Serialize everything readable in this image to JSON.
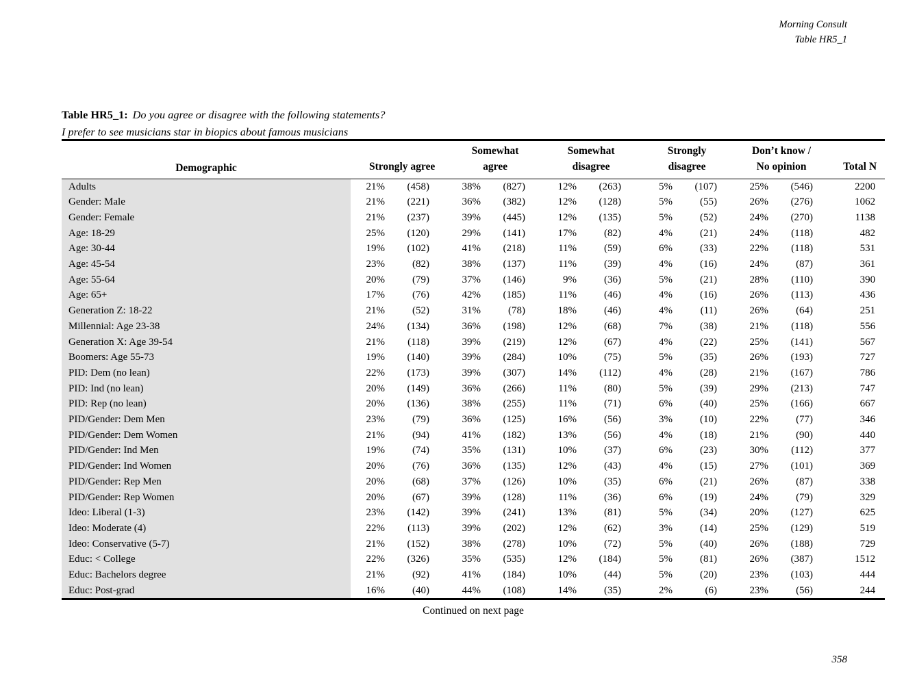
{
  "page_header": {
    "source": "Morning Consult",
    "table_ref": "Table HR5_1"
  },
  "title": {
    "prefix": "Table HR5_1:",
    "question": "Do you agree or disagree with the following statements?",
    "statement": "I prefer to see musicians star in biopics about famous musicians"
  },
  "table": {
    "demographic_header": "Demographic",
    "col_groups": [
      {
        "line1": "",
        "line2": "Strongly agree"
      },
      {
        "line1": "Somewhat",
        "line2": "agree"
      },
      {
        "line1": "Somewhat",
        "line2": "disagree"
      },
      {
        "line1": "Strongly",
        "line2": "disagree"
      },
      {
        "line1": "Don’t know /",
        "line2": "No opinion"
      },
      {
        "line1": "",
        "line2": "Total N"
      }
    ],
    "rows": [
      {
        "label": "Adults",
        "cells": [
          "21%",
          "(458)",
          "38%",
          "(827)",
          "12%",
          "(263)",
          "5%",
          "(107)",
          "25%",
          "(546)",
          "2200"
        ]
      },
      {
        "label": "Gender: Male",
        "cells": [
          "21%",
          "(221)",
          "36%",
          "(382)",
          "12%",
          "(128)",
          "5%",
          "(55)",
          "26%",
          "(276)",
          "1062"
        ]
      },
      {
        "label": "Gender: Female",
        "cells": [
          "21%",
          "(237)",
          "39%",
          "(445)",
          "12%",
          "(135)",
          "5%",
          "(52)",
          "24%",
          "(270)",
          "1138"
        ]
      },
      {
        "label": "Age: 18-29",
        "cells": [
          "25%",
          "(120)",
          "29%",
          "(141)",
          "17%",
          "(82)",
          "4%",
          "(21)",
          "24%",
          "(118)",
          "482"
        ]
      },
      {
        "label": "Age: 30-44",
        "cells": [
          "19%",
          "(102)",
          "41%",
          "(218)",
          "11%",
          "(59)",
          "6%",
          "(33)",
          "22%",
          "(118)",
          "531"
        ]
      },
      {
        "label": "Age: 45-54",
        "cells": [
          "23%",
          "(82)",
          "38%",
          "(137)",
          "11%",
          "(39)",
          "4%",
          "(16)",
          "24%",
          "(87)",
          "361"
        ]
      },
      {
        "label": "Age: 55-64",
        "cells": [
          "20%",
          "(79)",
          "37%",
          "(146)",
          "9%",
          "(36)",
          "5%",
          "(21)",
          "28%",
          "(110)",
          "390"
        ]
      },
      {
        "label": "Age: 65+",
        "cells": [
          "17%",
          "(76)",
          "42%",
          "(185)",
          "11%",
          "(46)",
          "4%",
          "(16)",
          "26%",
          "(113)",
          "436"
        ]
      },
      {
        "label": "Generation Z: 18-22",
        "cells": [
          "21%",
          "(52)",
          "31%",
          "(78)",
          "18%",
          "(46)",
          "4%",
          "(11)",
          "26%",
          "(64)",
          "251"
        ]
      },
      {
        "label": "Millennial: Age 23-38",
        "cells": [
          "24%",
          "(134)",
          "36%",
          "(198)",
          "12%",
          "(68)",
          "7%",
          "(38)",
          "21%",
          "(118)",
          "556"
        ]
      },
      {
        "label": "Generation X: Age 39-54",
        "cells": [
          "21%",
          "(118)",
          "39%",
          "(219)",
          "12%",
          "(67)",
          "4%",
          "(22)",
          "25%",
          "(141)",
          "567"
        ]
      },
      {
        "label": "Boomers: Age 55-73",
        "cells": [
          "19%",
          "(140)",
          "39%",
          "(284)",
          "10%",
          "(75)",
          "5%",
          "(35)",
          "26%",
          "(193)",
          "727"
        ]
      },
      {
        "label": "PID: Dem (no lean)",
        "cells": [
          "22%",
          "(173)",
          "39%",
          "(307)",
          "14%",
          "(112)",
          "4%",
          "(28)",
          "21%",
          "(167)",
          "786"
        ]
      },
      {
        "label": "PID: Ind (no lean)",
        "cells": [
          "20%",
          "(149)",
          "36%",
          "(266)",
          "11%",
          "(80)",
          "5%",
          "(39)",
          "29%",
          "(213)",
          "747"
        ]
      },
      {
        "label": "PID: Rep (no lean)",
        "cells": [
          "20%",
          "(136)",
          "38%",
          "(255)",
          "11%",
          "(71)",
          "6%",
          "(40)",
          "25%",
          "(166)",
          "667"
        ]
      },
      {
        "label": "PID/Gender: Dem Men",
        "cells": [
          "23%",
          "(79)",
          "36%",
          "(125)",
          "16%",
          "(56)",
          "3%",
          "(10)",
          "22%",
          "(77)",
          "346"
        ]
      },
      {
        "label": "PID/Gender: Dem Women",
        "cells": [
          "21%",
          "(94)",
          "41%",
          "(182)",
          "13%",
          "(56)",
          "4%",
          "(18)",
          "21%",
          "(90)",
          "440"
        ]
      },
      {
        "label": "PID/Gender: Ind Men",
        "cells": [
          "19%",
          "(74)",
          "35%",
          "(131)",
          "10%",
          "(37)",
          "6%",
          "(23)",
          "30%",
          "(112)",
          "377"
        ]
      },
      {
        "label": "PID/Gender: Ind Women",
        "cells": [
          "20%",
          "(76)",
          "36%",
          "(135)",
          "12%",
          "(43)",
          "4%",
          "(15)",
          "27%",
          "(101)",
          "369"
        ]
      },
      {
        "label": "PID/Gender: Rep Men",
        "cells": [
          "20%",
          "(68)",
          "37%",
          "(126)",
          "10%",
          "(35)",
          "6%",
          "(21)",
          "26%",
          "(87)",
          "338"
        ]
      },
      {
        "label": "PID/Gender: Rep Women",
        "cells": [
          "20%",
          "(67)",
          "39%",
          "(128)",
          "11%",
          "(36)",
          "6%",
          "(19)",
          "24%",
          "(79)",
          "329"
        ]
      },
      {
        "label": "Ideo: Liberal (1-3)",
        "cells": [
          "23%",
          "(142)",
          "39%",
          "(241)",
          "13%",
          "(81)",
          "5%",
          "(34)",
          "20%",
          "(127)",
          "625"
        ]
      },
      {
        "label": "Ideo: Moderate (4)",
        "cells": [
          "22%",
          "(113)",
          "39%",
          "(202)",
          "12%",
          "(62)",
          "3%",
          "(14)",
          "25%",
          "(129)",
          "519"
        ]
      },
      {
        "label": "Ideo: Conservative (5-7)",
        "cells": [
          "21%",
          "(152)",
          "38%",
          "(278)",
          "10%",
          "(72)",
          "5%",
          "(40)",
          "26%",
          "(188)",
          "729"
        ]
      },
      {
        "label": "Educ: < College",
        "cells": [
          "22%",
          "(326)",
          "35%",
          "(535)",
          "12%",
          "(184)",
          "5%",
          "(81)",
          "26%",
          "(387)",
          "1512"
        ]
      },
      {
        "label": "Educ: Bachelors degree",
        "cells": [
          "21%",
          "(92)",
          "41%",
          "(184)",
          "10%",
          "(44)",
          "5%",
          "(20)",
          "23%",
          "(103)",
          "444"
        ]
      },
      {
        "label": "Educ: Post-grad",
        "cells": [
          "16%",
          "(40)",
          "44%",
          "(108)",
          "14%",
          "(35)",
          "2%",
          "(6)",
          "23%",
          "(56)",
          "244"
        ]
      }
    ]
  },
  "footer": {
    "continued": "Continued on next page",
    "page_number": "358"
  },
  "colors": {
    "row_label_bg": "#e1e1e1",
    "ink": "#000000"
  }
}
